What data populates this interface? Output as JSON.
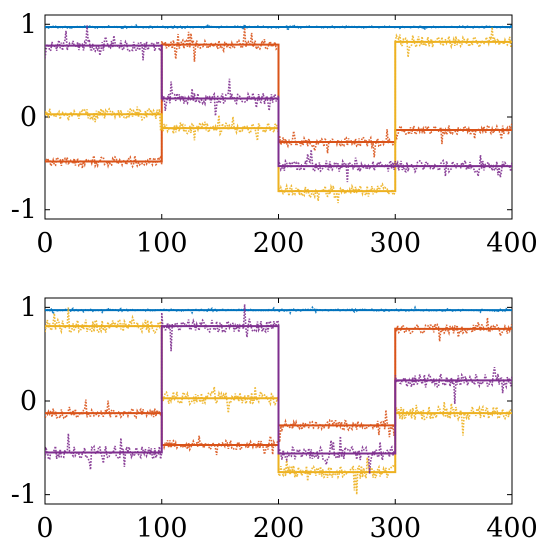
{
  "chart_data": [
    {
      "type": "line",
      "title": "",
      "xlabel": "",
      "ylabel": "",
      "xlim": [
        0,
        400
      ],
      "ylim": [
        -1.1,
        1.1
      ],
      "xticks": [
        0,
        100,
        200,
        300,
        400
      ],
      "xtick_labels": [
        "0",
        "100",
        "200",
        "300",
        "400"
      ],
      "yticks": [
        1,
        0,
        -1
      ],
      "ytick_labels": [
        "1",
        "0",
        "-1"
      ],
      "grid": false,
      "legend": false,
      "series": [
        {
          "color": "#0072BD",
          "style": "solid",
          "noise": 0,
          "segments": [
            {
              "x": [
                0,
                400
              ],
              "y": 0.97
            }
          ]
        },
        {
          "color": "#0072BD",
          "style": "dotted",
          "noise": 0.01,
          "segments": [
            {
              "x": [
                0,
                400
              ],
              "y": 0.97
            }
          ]
        },
        {
          "color": "#D95319",
          "style": "solid",
          "noise": 0,
          "segments": [
            {
              "x": [
                0,
                100
              ],
              "y": -0.48
            },
            {
              "x": [
                100,
                200
              ],
              "y": 0.78
            },
            {
              "x": [
                200,
                300
              ],
              "y": -0.27
            },
            {
              "x": [
                300,
                400
              ],
              "y": -0.14
            }
          ]
        },
        {
          "color": "#D95319",
          "style": "dotted",
          "noise": 0.05,
          "segments": [
            {
              "x": [
                0,
                100
              ],
              "y": -0.48
            },
            {
              "x": [
                100,
                200
              ],
              "y": 0.78
            },
            {
              "x": [
                200,
                300
              ],
              "y": -0.27
            },
            {
              "x": [
                300,
                400
              ],
              "y": -0.14
            }
          ]
        },
        {
          "color": "#EDB120",
          "style": "solid",
          "noise": 0,
          "segments": [
            {
              "x": [
                0,
                100
              ],
              "y": 0.03
            },
            {
              "x": [
                100,
                200
              ],
              "y": -0.12
            },
            {
              "x": [
                200,
                300
              ],
              "y": -0.8
            },
            {
              "x": [
                300,
                400
              ],
              "y": 0.81
            }
          ]
        },
        {
          "color": "#EDB120",
          "style": "dotted",
          "noise": 0.06,
          "segments": [
            {
              "x": [
                0,
                100
              ],
              "y": 0.03
            },
            {
              "x": [
                100,
                200
              ],
              "y": -0.12
            },
            {
              "x": [
                200,
                300
              ],
              "y": -0.8
            },
            {
              "x": [
                300,
                400
              ],
              "y": 0.81
            }
          ]
        },
        {
          "color": "#7E2F8E",
          "style": "solid",
          "noise": 0,
          "segments": [
            {
              "x": [
                0,
                100
              ],
              "y": 0.77
            },
            {
              "x": [
                100,
                200
              ],
              "y": 0.2
            },
            {
              "x": [
                200,
                300
              ],
              "y": -0.53
            },
            {
              "x": [
                300,
                400
              ],
              "y": -0.53
            }
          ]
        },
        {
          "color": "#7E2F8E",
          "style": "dotted",
          "noise": 0.06,
          "segments": [
            {
              "x": [
                0,
                100
              ],
              "y": 0.77
            },
            {
              "x": [
                100,
                200
              ],
              "y": 0.2
            },
            {
              "x": [
                200,
                300
              ],
              "y": -0.53
            },
            {
              "x": [
                300,
                400
              ],
              "y": -0.53
            }
          ]
        }
      ]
    },
    {
      "type": "line",
      "title": "",
      "xlabel": "",
      "ylabel": "",
      "xlim": [
        0,
        400
      ],
      "ylim": [
        -1.1,
        1.1
      ],
      "xticks": [
        0,
        100,
        200,
        300,
        400
      ],
      "xtick_labels": [
        "0",
        "100",
        "200",
        "300",
        "400"
      ],
      "yticks": [
        1,
        0,
        -1
      ],
      "ytick_labels": [
        "1",
        "0",
        "-1"
      ],
      "grid": false,
      "legend": false,
      "series": [
        {
          "color": "#0072BD",
          "style": "solid",
          "noise": 0,
          "segments": [
            {
              "x": [
                0,
                400
              ],
              "y": 0.97
            }
          ]
        },
        {
          "color": "#0072BD",
          "style": "dotted",
          "noise": 0.01,
          "segments": [
            {
              "x": [
                0,
                400
              ],
              "y": 0.97
            }
          ]
        },
        {
          "color": "#D95319",
          "style": "solid",
          "noise": 0,
          "segments": [
            {
              "x": [
                0,
                100
              ],
              "y": -0.13
            },
            {
              "x": [
                100,
                200
              ],
              "y": -0.47
            },
            {
              "x": [
                200,
                300
              ],
              "y": -0.26
            },
            {
              "x": [
                300,
                400
              ],
              "y": 0.77
            }
          ]
        },
        {
          "color": "#D95319",
          "style": "dotted",
          "noise": 0.05,
          "segments": [
            {
              "x": [
                0,
                100
              ],
              "y": -0.13
            },
            {
              "x": [
                100,
                200
              ],
              "y": -0.47
            },
            {
              "x": [
                200,
                300
              ],
              "y": -0.26
            },
            {
              "x": [
                300,
                400
              ],
              "y": 0.77
            }
          ]
        },
        {
          "color": "#EDB120",
          "style": "solid",
          "noise": 0,
          "segments": [
            {
              "x": [
                0,
                100
              ],
              "y": 0.8
            },
            {
              "x": [
                100,
                200
              ],
              "y": 0.03
            },
            {
              "x": [
                200,
                300
              ],
              "y": -0.76
            },
            {
              "x": [
                300,
                400
              ],
              "y": -0.13
            }
          ]
        },
        {
          "color": "#EDB120",
          "style": "dotted",
          "noise": 0.07,
          "segments": [
            {
              "x": [
                0,
                100
              ],
              "y": 0.8
            },
            {
              "x": [
                100,
                200
              ],
              "y": 0.03
            },
            {
              "x": [
                200,
                300
              ],
              "y": -0.76
            },
            {
              "x": [
                300,
                400
              ],
              "y": -0.13
            }
          ]
        },
        {
          "color": "#7E2F8E",
          "style": "solid",
          "noise": 0,
          "segments": [
            {
              "x": [
                0,
                100
              ],
              "y": -0.55
            },
            {
              "x": [
                100,
                200
              ],
              "y": 0.8
            },
            {
              "x": [
                200,
                300
              ],
              "y": -0.56
            },
            {
              "x": [
                300,
                400
              ],
              "y": 0.22
            }
          ]
        },
        {
          "color": "#7E2F8E",
          "style": "dotted",
          "noise": 0.07,
          "segments": [
            {
              "x": [
                0,
                100
              ],
              "y": -0.55
            },
            {
              "x": [
                100,
                200
              ],
              "y": 0.8
            },
            {
              "x": [
                200,
                300
              ],
              "y": -0.56
            },
            {
              "x": [
                300,
                400
              ],
              "y": 0.22
            }
          ]
        }
      ]
    }
  ]
}
